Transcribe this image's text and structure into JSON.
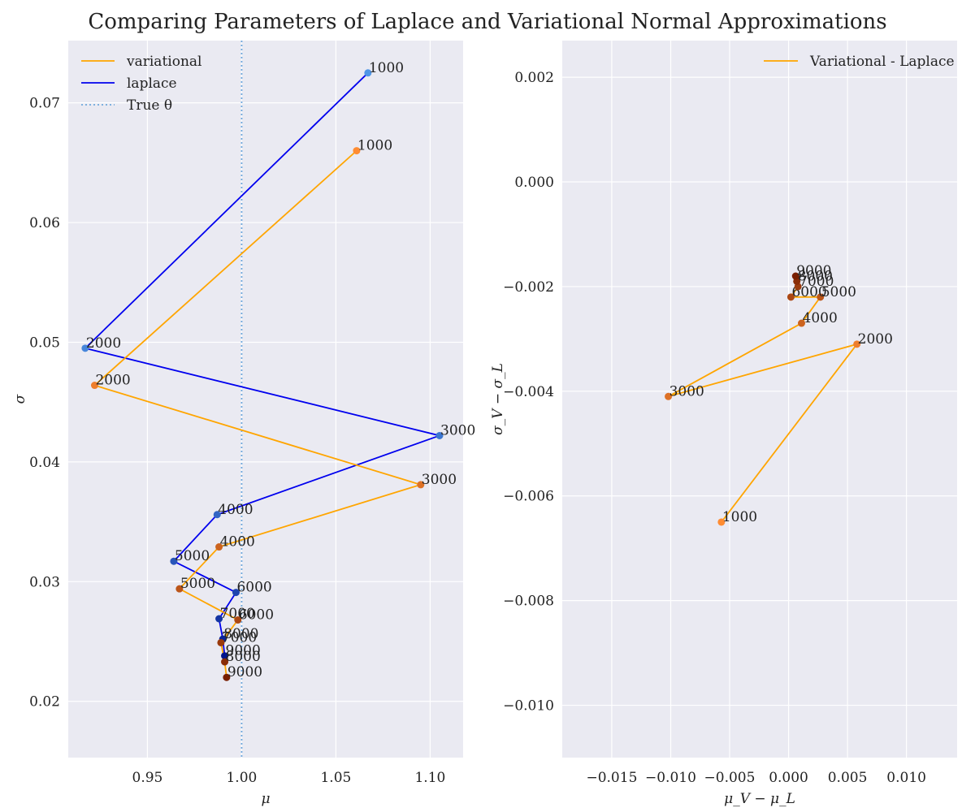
{
  "title": "Comparing Parameters of Laplace and Variational Normal Approximations",
  "chart_data": [
    {
      "type": "line",
      "xlabel": "μ",
      "ylabel": "σ",
      "xlim": [
        0.908,
        1.1175
      ],
      "ylim": [
        0.0153,
        0.0752
      ],
      "xticks": [
        0.95,
        1.0,
        1.05,
        1.1
      ],
      "xtick_labels": [
        "0.95",
        "1.00",
        "1.05",
        "1.10"
      ],
      "yticks": [
        0.02,
        0.03,
        0.04,
        0.05,
        0.06,
        0.07
      ],
      "ytick_labels": [
        "0.02",
        "0.03",
        "0.04",
        "0.05",
        "0.06",
        "0.07"
      ],
      "grid": true,
      "legend": "top-left",
      "reference_line": {
        "x": 1.0,
        "label": "True θ",
        "color": "#6fa8dc"
      },
      "point_labels": [
        "1000",
        "2000",
        "3000",
        "4000",
        "5000",
        "6000",
        "7000",
        "8000",
        "9000"
      ],
      "series": [
        {
          "name": "variational",
          "color": "#ffa500",
          "x": [
            1.061,
            0.922,
            1.095,
            0.988,
            0.967,
            0.998,
            0.989,
            0.991,
            0.992
          ],
          "y": [
            0.066,
            0.0464,
            0.0381,
            0.0329,
            0.0294,
            0.0268,
            0.0249,
            0.0233,
            0.022
          ]
        },
        {
          "name": "laplace",
          "color": "#0000ee",
          "x": [
            1.067,
            0.917,
            1.105,
            0.987,
            0.964,
            0.997,
            0.988,
            0.99,
            0.991
          ],
          "y": [
            0.0725,
            0.0495,
            0.0422,
            0.0356,
            0.0317,
            0.0291,
            0.0269,
            0.0252,
            0.0238
          ]
        }
      ]
    },
    {
      "type": "line",
      "xlabel": "μ_V − μ_L",
      "ylabel": "σ_V − σ_L",
      "xlim": [
        -0.0192,
        0.0143
      ],
      "ylim": [
        -0.011,
        0.0027
      ],
      "xticks": [
        -0.015,
        -0.01,
        -0.005,
        0.0,
        0.005,
        0.01
      ],
      "xtick_labels": [
        "−0.015",
        "−0.010",
        "−0.005",
        "0.000",
        "0.005",
        "0.010"
      ],
      "yticks": [
        -0.01,
        -0.008,
        -0.006,
        -0.004,
        -0.002,
        0.0,
        0.002
      ],
      "ytick_labels": [
        "−0.010",
        "−0.008",
        "−0.006",
        "−0.004",
        "−0.002",
        "0.000",
        "0.002"
      ],
      "grid": true,
      "legend": "top-right",
      "point_labels": [
        "1000",
        "2000",
        "3000",
        "4000",
        "5000",
        "6000",
        "7000",
        "8000",
        "9000"
      ],
      "series": [
        {
          "name": "Variational - Laplace",
          "color": "#ffa500",
          "x": [
            -0.0057,
            0.0058,
            -0.0102,
            0.0011,
            0.0027,
            0.0002,
            0.0008,
            0.0007,
            0.0006
          ],
          "y": [
            -0.0065,
            -0.0031,
            -0.0041,
            -0.0027,
            -0.0022,
            -0.0022,
            -0.002,
            -0.0019,
            -0.0018
          ]
        }
      ]
    }
  ]
}
